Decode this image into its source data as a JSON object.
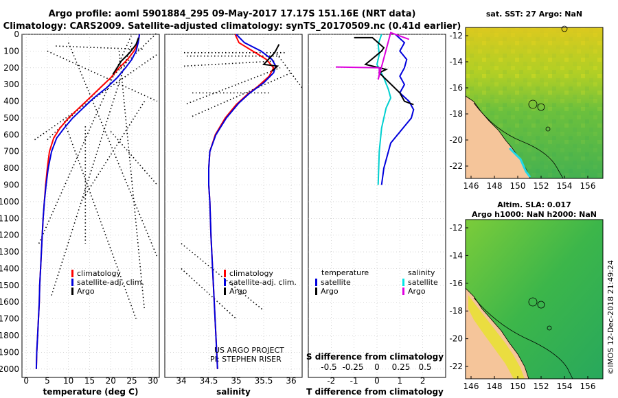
{
  "header": {
    "line1": "Argo profile: aoml 5901884_295 09-May-2017 17.17S 151.16E (NRT data)",
    "line2": "Climatology: CARS2009. Satellite-adjusted climatology: synTS_20170509.nc (0.41d earlier)"
  },
  "colors": {
    "climatology": "#ff0000",
    "satellite": "#0000dd",
    "argo": "#000000",
    "sat_salinity": "#00e5e5",
    "argo_salinity": "#e000e0",
    "land": "#f5c59a"
  },
  "chart_data": [
    {
      "id": "temperature",
      "type": "line",
      "xlabel": "temperature (deg C)",
      "xlim": [
        -1,
        31.5
      ],
      "xticks": [
        "0",
        "5",
        "10",
        "15",
        "20",
        "25",
        "30"
      ],
      "ylim": [
        2050,
        0
      ],
      "yticks": [
        "0",
        "100",
        "200",
        "300",
        "400",
        "500",
        "600",
        "700",
        "800",
        "900",
        "1000",
        "1100",
        "1200",
        "1300",
        "1400",
        "1500",
        "1600",
        "1700",
        "1800",
        "1900",
        "2000"
      ],
      "legend": [
        "climatology",
        "satellite-adj. clim.",
        "Argo"
      ],
      "series": [
        {
          "name": "climatology",
          "color": "#ff0000",
          "points": [
            [
              26.8,
              0
            ],
            [
              26.5,
              50
            ],
            [
              25.5,
              100
            ],
            [
              24,
              150
            ],
            [
              22,
              200
            ],
            [
              20,
              260
            ],
            [
              17.5,
              320
            ],
            [
              15,
              380
            ],
            [
              12.5,
              440
            ],
            [
              10,
              500
            ],
            [
              8,
              560
            ],
            [
              6.5,
              620
            ],
            [
              5.5,
              700
            ],
            [
              5,
              800
            ],
            [
              4.6,
              900
            ],
            [
              4.3,
              1000
            ],
            [
              4,
              1100
            ],
            [
              3.8,
              1200
            ],
            [
              3.6,
              1300
            ],
            [
              3.4,
              1400
            ],
            [
              3.2,
              1500
            ],
            [
              3.1,
              1600
            ],
            [
              2.9,
              1700
            ],
            [
              2.7,
              1800
            ],
            [
              2.5,
              1900
            ],
            [
              2.4,
              2000
            ]
          ]
        },
        {
          "name": "satellite-adj. clim.",
          "color": "#0000dd",
          "points": [
            [
              26.8,
              0
            ],
            [
              26.5,
              50
            ],
            [
              26,
              100
            ],
            [
              25,
              150
            ],
            [
              23.5,
              200
            ],
            [
              21.5,
              260
            ],
            [
              19,
              320
            ],
            [
              16,
              380
            ],
            [
              13.5,
              440
            ],
            [
              11,
              500
            ],
            [
              9,
              560
            ],
            [
              7.2,
              620
            ],
            [
              6,
              700
            ],
            [
              5.2,
              800
            ],
            [
              4.7,
              900
            ],
            [
              4.3,
              1000
            ],
            [
              4,
              1100
            ],
            [
              3.8,
              1200
            ],
            [
              3.6,
              1300
            ],
            [
              3.4,
              1400
            ],
            [
              3.2,
              1500
            ],
            [
              3.1,
              1600
            ],
            [
              2.9,
              1700
            ],
            [
              2.7,
              1800
            ],
            [
              2.5,
              1900
            ],
            [
              2.4,
              2000
            ]
          ]
        },
        {
          "name": "Argo",
          "color": "#000000",
          "points": [
            [
              26.6,
              20
            ],
            [
              26,
              60
            ],
            [
              24.5,
              110
            ],
            [
              22.5,
              160
            ],
            [
              21.5,
              200
            ],
            [
              20.5,
              240
            ]
          ]
        }
      ],
      "argo_tracks": [
        [
          [
            5,
            630
          ],
          [
            31,
            -10
          ]
        ],
        [
          [
            2,
            630
          ],
          [
            31,
            120
          ]
        ],
        [
          [
            7,
            70
          ],
          [
            28,
            90
          ]
        ],
        [
          [
            5,
            100
          ],
          [
            31,
            400
          ]
        ],
        [
          [
            22,
            100
          ],
          [
            28,
            1650
          ]
        ],
        [
          [
            3,
            1250
          ],
          [
            25,
            0
          ]
        ],
        [
          [
            10,
            50
          ],
          [
            31,
            1330
          ]
        ],
        [
          [
            25,
            50
          ],
          [
            6,
            1560
          ]
        ],
        [
          [
            14,
            550
          ],
          [
            14,
            1250
          ]
        ],
        [
          [
            20,
            580
          ],
          [
            31,
            900
          ]
        ],
        [
          [
            28,
            400
          ],
          [
            13,
            1000
          ]
        ],
        [
          [
            9,
            520
          ],
          [
            26,
            1700
          ]
        ]
      ]
    },
    {
      "id": "salinity",
      "type": "line",
      "xlabel": "salinity",
      "xlim": [
        33.7,
        36.2
      ],
      "xticks": [
        "34",
        "34.5",
        "35",
        "35.5",
        "36"
      ],
      "ylim": [
        2050,
        0
      ],
      "legend": [
        "climatology",
        "satellite-adj. clim.",
        "Argo"
      ],
      "annotation": [
        "US ARGO PROJECT",
        "PI: STEPHEN RISER"
      ],
      "series": [
        {
          "name": "climatology",
          "color": "#ff0000",
          "points": [
            [
              34.98,
              0
            ],
            [
              35.05,
              50
            ],
            [
              35.3,
              100
            ],
            [
              35.55,
              150
            ],
            [
              35.68,
              200
            ],
            [
              35.6,
              250
            ],
            [
              35.4,
              310
            ],
            [
              35.2,
              360
            ],
            [
              35,
              420
            ],
            [
              34.8,
              500
            ],
            [
              34.62,
              600
            ],
            [
              34.52,
              700
            ],
            [
              34.5,
              800
            ],
            [
              34.5,
              900
            ],
            [
              34.52,
              1000
            ],
            [
              34.54,
              1200
            ],
            [
              34.57,
              1400
            ],
            [
              34.6,
              1600
            ],
            [
              34.63,
              1800
            ],
            [
              34.66,
              2000
            ]
          ]
        },
        {
          "name": "satellite-adj. clim.",
          "color": "#0000dd",
          "points": [
            [
              35.0,
              0
            ],
            [
              35.15,
              50
            ],
            [
              35.45,
              100
            ],
            [
              35.65,
              150
            ],
            [
              35.72,
              190
            ],
            [
              35.68,
              230
            ],
            [
              35.5,
              290
            ],
            [
              35.25,
              350
            ],
            [
              35.05,
              410
            ],
            [
              34.82,
              500
            ],
            [
              34.63,
              600
            ],
            [
              34.52,
              700
            ],
            [
              34.5,
              800
            ],
            [
              34.5,
              900
            ],
            [
              34.52,
              1000
            ],
            [
              34.54,
              1200
            ],
            [
              34.57,
              1400
            ],
            [
              34.6,
              1600
            ],
            [
              34.63,
              1800
            ],
            [
              34.66,
              2000
            ]
          ]
        },
        {
          "name": "Argo",
          "color": "#000000",
          "points": [
            [
              35.78,
              60
            ],
            [
              35.7,
              110
            ],
            [
              35.5,
              180
            ],
            [
              35.75,
              190
            ],
            [
              35.65,
              220
            ]
          ]
        }
      ],
      "argo_tracks": [
        [
          [
            34.1,
            130
          ],
          [
            35.8,
            130
          ]
        ],
        [
          [
            34.05,
            190
          ],
          [
            35.7,
            160
          ]
        ],
        [
          [
            34.05,
            110
          ],
          [
            35.9,
            110
          ]
        ],
        [
          [
            34.1,
            415
          ],
          [
            35.8,
            200
          ]
        ],
        [
          [
            34.2,
            490
          ],
          [
            36.0,
            230
          ]
        ],
        [
          [
            34.0,
            1250
          ],
          [
            35.5,
            1650
          ]
        ],
        [
          [
            34.0,
            1400
          ],
          [
            35.0,
            1700
          ]
        ],
        [
          [
            35.7,
            100
          ],
          [
            36.2,
            320
          ]
        ],
        [
          [
            34.2,
            350
          ],
          [
            35.6,
            350
          ]
        ]
      ]
    },
    {
      "id": "difference",
      "type": "line",
      "xlabel": "T difference from climatology",
      "x2label": "S difference from climatology",
      "xlim": [
        -3,
        3
      ],
      "xticks": [
        "-2",
        "-1",
        "0",
        "1",
        "2"
      ],
      "x2ticks": [
        "-0.5",
        "-0.25",
        "0",
        "0.25",
        "0.5"
      ],
      "ylim": [
        2050,
        0
      ],
      "legend_left_title": "temperature",
      "legend_right_title": "salinity",
      "legend": [
        "satellite",
        "Argo",
        "satellite",
        "Argo"
      ],
      "series": [
        {
          "name": "temperature satellite",
          "color": "#0000dd",
          "points": [
            [
              0.8,
              0
            ],
            [
              1.2,
              50
            ],
            [
              1.0,
              100
            ],
            [
              1.3,
              150
            ],
            [
              1.2,
              200
            ],
            [
              1.0,
              250
            ],
            [
              1.2,
              300
            ],
            [
              1.0,
              350
            ],
            [
              1.4,
              400
            ],
            [
              1.6,
              450
            ],
            [
              1.5,
              500
            ],
            [
              1.2,
              550
            ],
            [
              0.6,
              650
            ],
            [
              0.3,
              800
            ],
            [
              0.2,
              900
            ]
          ]
        },
        {
          "name": "salinity satellite",
          "color": "#00d0d0",
          "points": [
            [
              0.2,
              0
            ],
            [
              0.05,
              60
            ],
            [
              0.1,
              120
            ],
            [
              0.0,
              180
            ],
            [
              0.3,
              260
            ],
            [
              0.5,
              330
            ],
            [
              0.6,
              380
            ],
            [
              0.4,
              440
            ],
            [
              0.2,
              560
            ],
            [
              0.1,
              700
            ],
            [
              0.05,
              900
            ]
          ]
        },
        {
          "name": "temperature Argo",
          "color": "#000000",
          "points": [
            [
              -1,
              20
            ],
            [
              -0.2,
              20
            ],
            [
              0.3,
              80
            ],
            [
              0.2,
              100
            ],
            [
              -0.5,
              180
            ],
            [
              0.4,
              210
            ],
            [
              0.1,
              230
            ],
            [
              1,
              350
            ],
            [
              1.2,
              400
            ],
            [
              1.6,
              420
            ]
          ]
        },
        {
          "name": "salinity Argo",
          "color": "#dd00dd",
          "points": [
            [
              -1.8,
              195
            ],
            [
              0.1,
              200
            ],
            [
              0.1,
              240
            ],
            [
              0.05,
              270
            ],
            [
              0.6,
              -10
            ],
            [
              1.4,
              30
            ]
          ]
        }
      ]
    }
  ],
  "maps": [
    {
      "title": "sat.  SST: 27 Argo: NaN",
      "xticks": [
        "146",
        "148",
        "150",
        "152",
        "154",
        "156"
      ],
      "yticks": [
        "-12",
        "-14",
        "-16",
        "-18",
        "-20",
        "-22"
      ]
    },
    {
      "title_line1": "Altim. SLA: 0.017",
      "title_line2": "Argo h1000: NaN h2000: NaN",
      "xticks": [
        "146",
        "148",
        "150",
        "152",
        "154",
        "156"
      ],
      "yticks": [
        "-12",
        "-14",
        "-16",
        "-18",
        "-20",
        "-22"
      ]
    }
  ],
  "credit": "©IMOS 12-Dec-2018 21:49:24"
}
